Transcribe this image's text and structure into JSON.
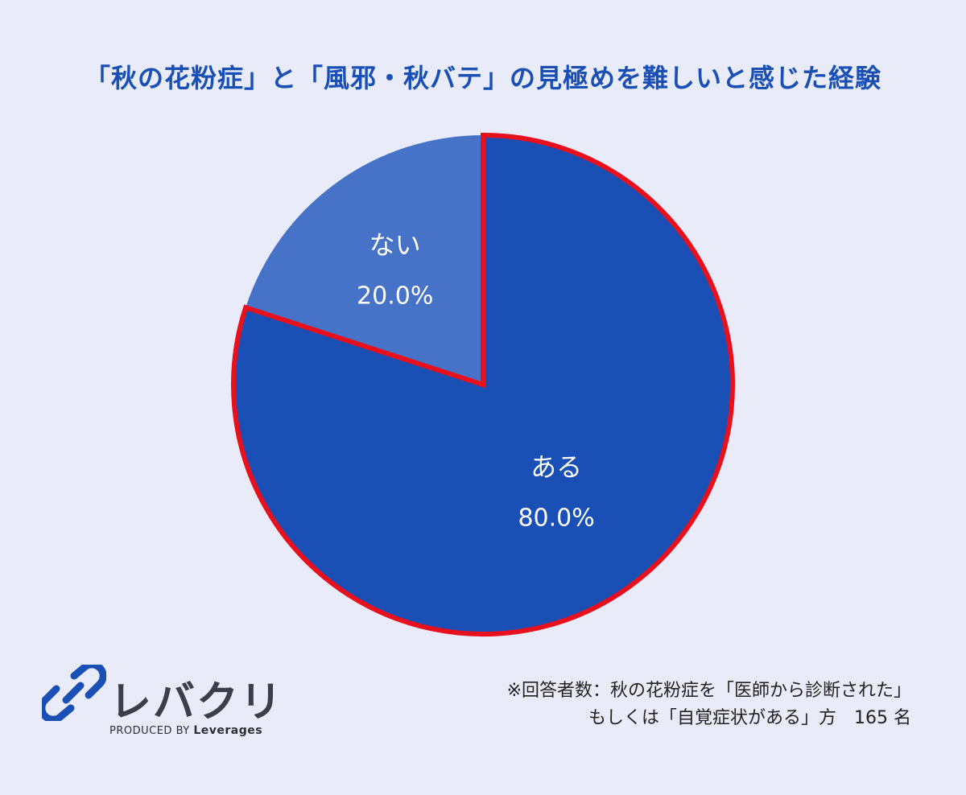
{
  "title": "「秋の花粉症」と「風邪・秋バテ」の見極めを難しいと感じた経験",
  "chart_data": {
    "type": "pie",
    "title": "「秋の花粉症」と「風邪・秋バテ」の見極めを難しいと感じた経験",
    "slices": [
      {
        "label": "ある",
        "value": 80.0,
        "value_text": "80.0%",
        "color": "#1a4fb6",
        "highlighted": true
      },
      {
        "label": "ない",
        "value": 20.0,
        "value_text": "20.0%",
        "color": "#4672c8",
        "highlighted": false
      }
    ],
    "start_angle_deg": 0,
    "direction": "clockwise",
    "highlight_color": "#e8101c"
  },
  "note": {
    "line1": "※回答者数：秋の花粉症を「医師から診断された」",
    "line2": "もしくは「自覚症状がある」方　165 名"
  },
  "logo": {
    "name": "レバクリ",
    "produced_by": "PRODUCED BY",
    "brand": "Leverages",
    "icon": "pill-link-icon"
  },
  "colors": {
    "background": "#e9ecf8",
    "title": "#1a4fb6",
    "logo_mark": "#1a4fb6"
  }
}
